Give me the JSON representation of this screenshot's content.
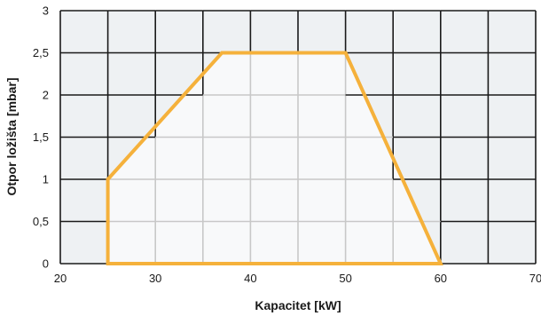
{
  "chart_data": {
    "type": "area",
    "xlabel": "Kapacitet [kW]",
    "ylabel": "Otpor ložišta  [mbar]",
    "xlim": [
      20,
      70
    ],
    "ylim": [
      0,
      3
    ],
    "x_ticks": [
      "20",
      "30",
      "40",
      "50",
      "60",
      "70"
    ],
    "y_ticks": [
      "0",
      "0,5",
      "1",
      "1,5",
      "2",
      "2,5",
      "3"
    ],
    "grid": true,
    "series": [
      {
        "x": [
          25,
          25,
          37,
          50,
          60,
          25
        ],
        "y": [
          0,
          1,
          2.5,
          2.5,
          0,
          0
        ]
      }
    ],
    "colors": {
      "plot_background": "#eef1f3",
      "region_fill": "#f8f9fa",
      "outline": "#f5b13b",
      "grid_major": "#1a1a1a",
      "grid_inner": "#c8c8c8"
    }
  }
}
